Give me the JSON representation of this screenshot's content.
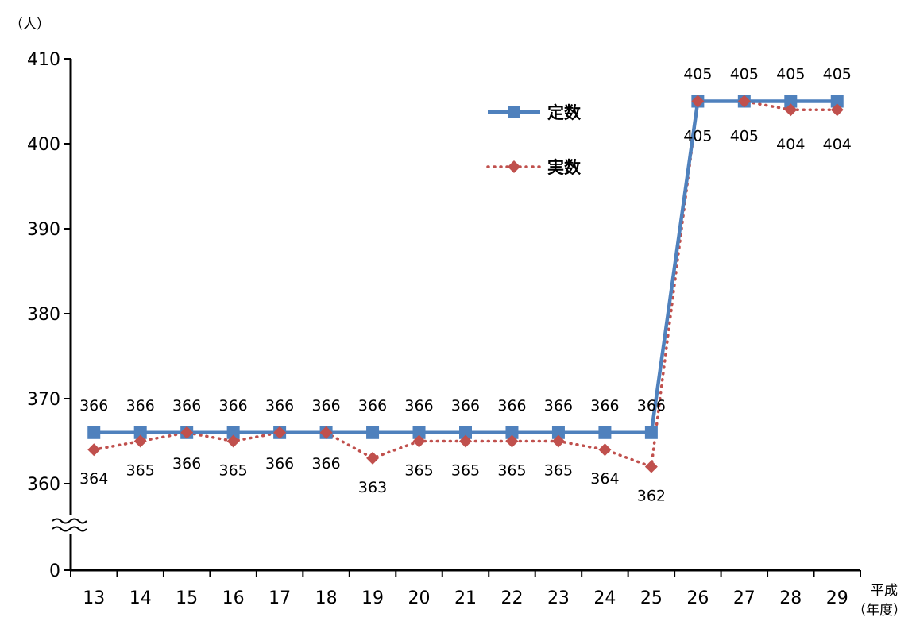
{
  "chart_data": {
    "type": "line",
    "y_unit": "（人）",
    "x_prefix": "平成",
    "x_suffix": "（年度）",
    "categories": [
      "13",
      "14",
      "15",
      "16",
      "17",
      "18",
      "19",
      "20",
      "21",
      "22",
      "23",
      "24",
      "25",
      "26",
      "27",
      "28",
      "29"
    ],
    "ylim": [
      360,
      410
    ],
    "yticks": [
      360,
      370,
      380,
      390,
      400,
      410
    ],
    "y_break": true,
    "y_zero_label": "0",
    "legend_position": "top-right",
    "grid": false,
    "series": [
      {
        "name": "定数",
        "values": [
          366,
          366,
          366,
          366,
          366,
          366,
          366,
          366,
          366,
          366,
          366,
          366,
          366,
          405,
          405,
          405,
          405
        ],
        "color": "#4F81BD",
        "style": "solid",
        "marker": "square"
      },
      {
        "name": "実数",
        "values": [
          364,
          365,
          366,
          365,
          366,
          366,
          363,
          365,
          365,
          365,
          365,
          364,
          362,
          405,
          405,
          404,
          404
        ],
        "color": "#C0504D",
        "style": "dotted",
        "marker": "diamond"
      }
    ]
  }
}
